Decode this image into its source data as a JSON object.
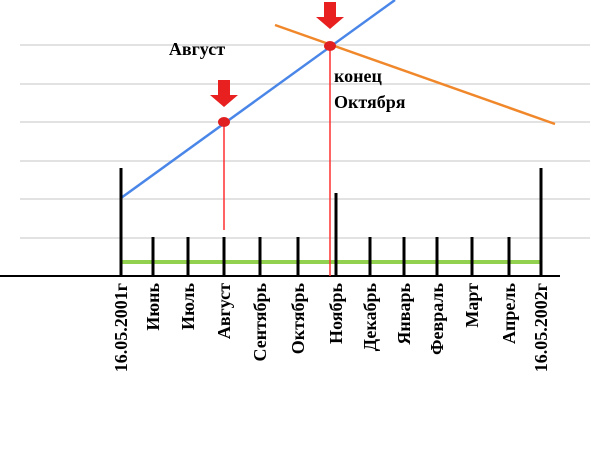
{
  "timeline": {
    "labels": [
      "16.05.2001г",
      "Июнь",
      "Июль",
      "Август",
      "Сентябрь",
      "Октябрь",
      "Ноябрь",
      "Декабрь",
      "Январь",
      "Февраль",
      "Март",
      "Апрель",
      "16.05.2002г"
    ]
  },
  "annotations": {
    "august": "Август",
    "october": [
      "конец",
      "Октября"
    ]
  }
}
